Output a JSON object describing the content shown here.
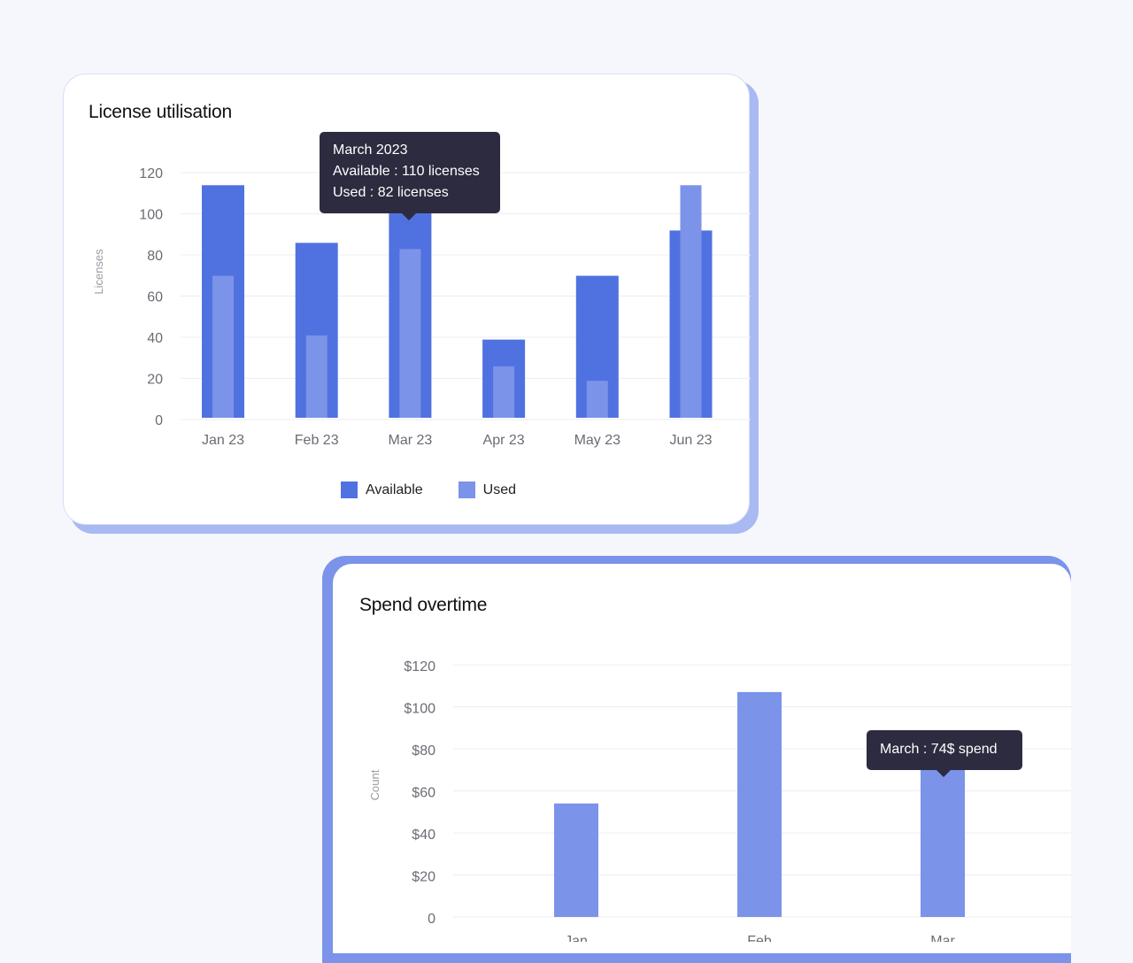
{
  "colors": {
    "available": "#5072e0",
    "used": "#7b93e8",
    "tooltip_bg": "#2d2b3f",
    "grid": "#ececf4",
    "card_shadow": "#a9b9f1"
  },
  "chart_data": [
    {
      "type": "bar",
      "title": "License utilisation",
      "ylabel": "Licenses",
      "xlabel": "",
      "categories": [
        "Jan 23",
        "Feb 23",
        "Mar 23",
        "Apr 23",
        "May 23",
        "Jun 23"
      ],
      "series": [
        {
          "name": "Available",
          "values": [
            113,
            85,
            110,
            38,
            69,
            91
          ]
        },
        {
          "name": "Used",
          "values": [
            69,
            40,
            82,
            25,
            18,
            113
          ]
        }
      ],
      "yticks": [
        "0",
        "20",
        "40",
        "60",
        "80",
        "100",
        "120"
      ],
      "ylim": [
        0,
        120
      ],
      "grid": true,
      "legend": "bottom-center",
      "tooltip": {
        "title": "March 2023",
        "line1": "Available : 110 licenses",
        "line2": "Used : 82 licenses"
      }
    },
    {
      "type": "bar",
      "title": "Spend overtime",
      "ylabel": "Count",
      "xlabel": "",
      "categories": [
        "Jan",
        "Feb",
        "Mar"
      ],
      "values": [
        54,
        107,
        74
      ],
      "yticks": [
        "0",
        "$20",
        "$40",
        "$60",
        "$80",
        "$100",
        "$120"
      ],
      "ylim": [
        0,
        120
      ],
      "grid": true,
      "tooltip": {
        "text": "March : 74$ spend"
      }
    }
  ]
}
